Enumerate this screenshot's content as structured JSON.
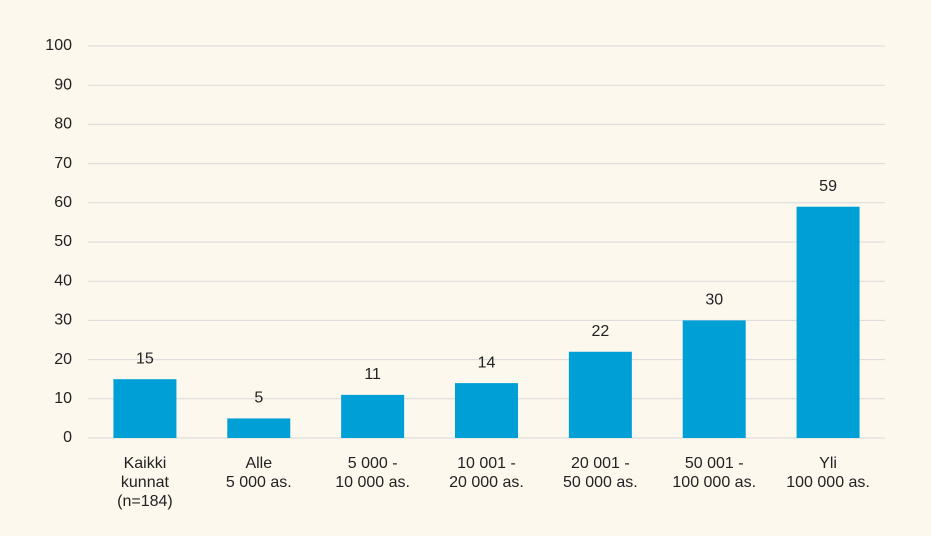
{
  "chart_data": {
    "type": "bar",
    "categories": [
      "Kaikki\nkunnat\n(n=184)",
      "Alle\n5 000 as.",
      "5 000 -\n10 000 as.",
      "10 001 -\n20 000 as.",
      "20 001 -\n50 000 as.",
      "50 001 -\n100 000 as.",
      "Yli\n100 000 as."
    ],
    "values": [
      15,
      5,
      11,
      14,
      22,
      30,
      59
    ],
    "color": "#00a0d6",
    "ylim": [
      0,
      100
    ],
    "yticks": [
      0,
      10,
      20,
      30,
      40,
      50,
      60,
      70,
      80,
      90,
      100
    ],
    "grid": true
  }
}
